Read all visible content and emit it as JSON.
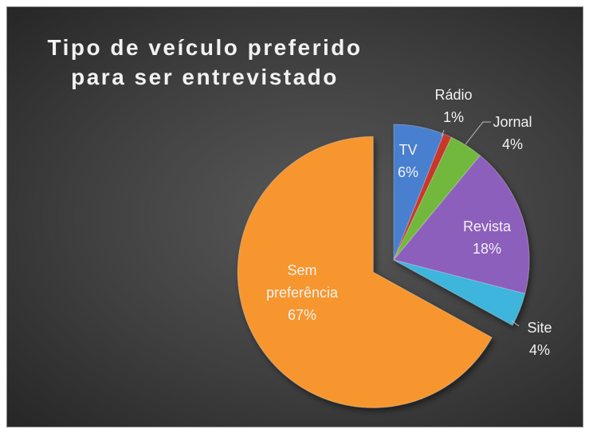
{
  "chart_data": {
    "type": "pie",
    "title": "Tipo de veículo preferido para ser entrevistado",
    "categories": [
      "TV",
      "Rádio",
      "Jornal",
      "Revista",
      "Site",
      "Sem preferência"
    ],
    "values": [
      6,
      1,
      4,
      18,
      4,
      67
    ],
    "value_labels": [
      "6%",
      "1%",
      "4%",
      "18%",
      "4%",
      "67%"
    ],
    "colors": [
      "#4a7fcf",
      "#c8382c",
      "#72b83e",
      "#8d5fbd",
      "#3db5dc",
      "#f7962e"
    ]
  }
}
